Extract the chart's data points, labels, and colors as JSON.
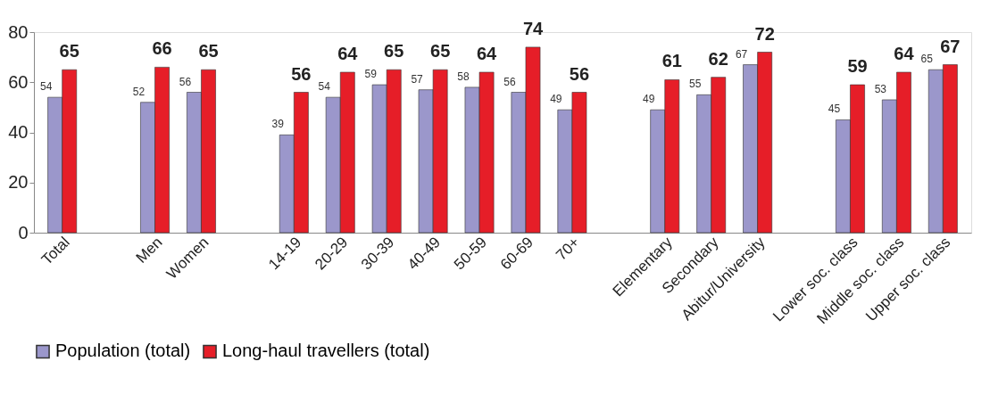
{
  "chart_data": {
    "type": "bar",
    "categories": [
      "Total",
      null,
      "Men",
      "Women",
      null,
      "14-19",
      "20-29",
      "30-39",
      "40-49",
      "50-59",
      "60-69",
      "70+",
      null,
      "Elementary",
      "Secondary",
      "Abitur/University",
      null,
      "Lower soc. class",
      "Middle soc. class",
      "Upper soc. class"
    ],
    "series": [
      {
        "name": "Population (total)",
        "color": "#9b97cb",
        "values": [
          54,
          null,
          52,
          56,
          null,
          39,
          54,
          59,
          57,
          58,
          56,
          49,
          null,
          49,
          55,
          67,
          null,
          45,
          53,
          65
        ]
      },
      {
        "name": "Long-haul travellers (total)",
        "color": "#e61e28",
        "values": [
          65,
          null,
          66,
          65,
          null,
          56,
          64,
          65,
          65,
          64,
          74,
          56,
          null,
          61,
          62,
          72,
          null,
          59,
          64,
          67
        ]
      }
    ],
    "ylim": [
      0,
      80
    ],
    "yticks": [
      0,
      20,
      40,
      60,
      80
    ],
    "grid": false,
    "legend": "bottom",
    "data_labels": true
  }
}
